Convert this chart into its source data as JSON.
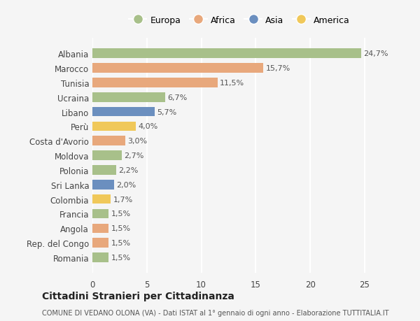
{
  "categories": [
    "Romania",
    "Rep. del Congo",
    "Angola",
    "Francia",
    "Colombia",
    "Sri Lanka",
    "Polonia",
    "Moldova",
    "Costa d'Avorio",
    "Perù",
    "Libano",
    "Ucraina",
    "Tunisia",
    "Marocco",
    "Albania"
  ],
  "values": [
    1.5,
    1.5,
    1.5,
    1.5,
    1.7,
    2.0,
    2.2,
    2.7,
    3.0,
    4.0,
    5.7,
    6.7,
    11.5,
    15.7,
    24.7
  ],
  "labels": [
    "1,5%",
    "1,5%",
    "1,5%",
    "1,5%",
    "1,7%",
    "2,0%",
    "2,2%",
    "2,7%",
    "3,0%",
    "4,0%",
    "5,7%",
    "6,7%",
    "11,5%",
    "15,7%",
    "24,7%"
  ],
  "continents": [
    "Europa",
    "Africa",
    "Africa",
    "Europa",
    "America",
    "Asia",
    "Europa",
    "Europa",
    "Africa",
    "America",
    "Asia",
    "Europa",
    "Africa",
    "Africa",
    "Europa"
  ],
  "colors": {
    "Europa": "#a8c08a",
    "Africa": "#e8a87c",
    "Asia": "#6b8fbf",
    "America": "#f0c85a"
  },
  "legend_order": [
    "Europa",
    "Africa",
    "Asia",
    "America"
  ],
  "title": "Cittadini Stranieri per Cittadinanza",
  "subtitle": "COMUNE DI VEDANO OLONA (VA) - Dati ISTAT al 1° gennaio di ogni anno - Elaborazione TUTTITALIA.IT",
  "xlim": [
    0,
    27
  ],
  "xticks": [
    0,
    5,
    10,
    15,
    20,
    25
  ],
  "background_color": "#f5f5f5",
  "grid_color": "#ffffff",
  "bar_height": 0.65
}
